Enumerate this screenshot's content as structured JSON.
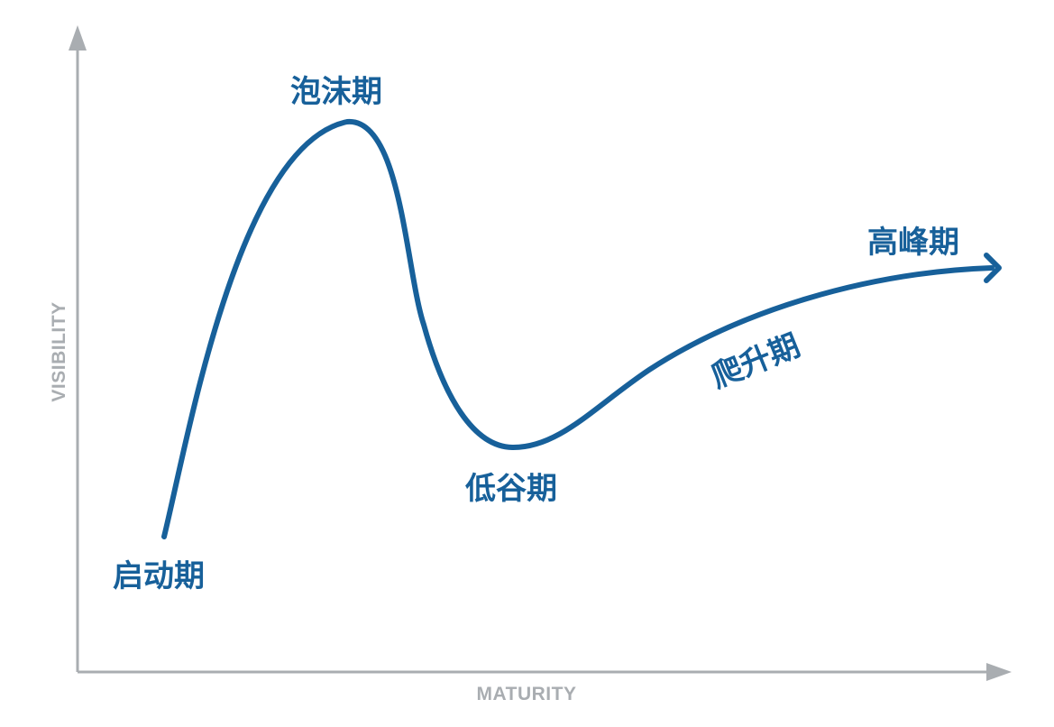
{
  "axes": {
    "y_title": "VISIBILITY",
    "x_title": "MATURITY",
    "axis_color": "#a9adb1"
  },
  "curve": {
    "color": "#17609a",
    "ends_with_arrow": true
  },
  "phases": {
    "launch": "启动期",
    "bubble": "泡沫期",
    "trough": "低谷期",
    "climb": "爬升期",
    "plateau": "高峰期"
  }
}
